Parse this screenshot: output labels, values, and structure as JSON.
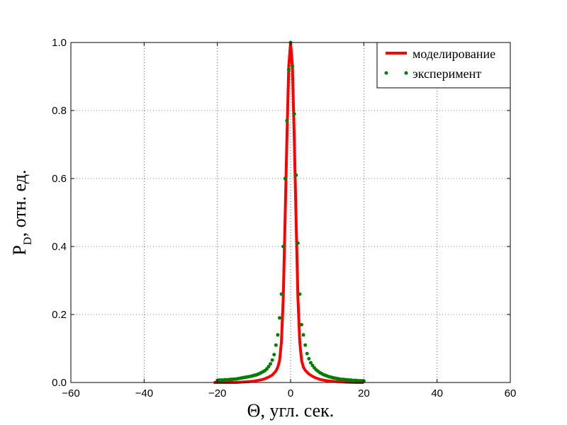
{
  "chart_data": {
    "type": "line",
    "xlabel": {
      "symbol": "Θ",
      "text": ", угл. сек."
    },
    "ylabel": {
      "symbol": "P",
      "subscript": "D",
      "text": ", отн. ед."
    },
    "xlim": [
      -60,
      60
    ],
    "ylim": [
      0,
      1
    ],
    "xticks": [
      -60,
      -40,
      -20,
      0,
      20,
      40,
      60
    ],
    "xtick_labels": [
      "−60",
      "−40",
      "−20",
      "0",
      "20",
      "40",
      "60"
    ],
    "yticks": [
      0,
      0.2,
      0.4,
      0.6,
      0.8,
      1.0
    ],
    "ytick_labels": [
      "0.0",
      "0.2",
      "0.4",
      "0.6",
      "0.8",
      "1.0"
    ],
    "grid": true,
    "legend_position": "top-right",
    "series": [
      {
        "name": "моделирование",
        "style": "line",
        "color": "#ff0000",
        "x": [
          -21,
          -18,
          -15,
          -12,
          -10,
          -8,
          -7,
          -6,
          -5,
          -4,
          -3.5,
          -3,
          -2.5,
          -2,
          -1.5,
          -1,
          -0.5,
          0,
          0.5,
          1,
          1.5,
          2,
          2.5,
          3,
          3.5,
          4,
          5,
          6,
          7,
          8,
          10,
          12,
          15,
          18,
          20
        ],
        "y": [
          0.0,
          0.0,
          0.0,
          0.002,
          0.004,
          0.008,
          0.011,
          0.016,
          0.022,
          0.034,
          0.045,
          0.065,
          0.12,
          0.25,
          0.48,
          0.72,
          0.93,
          1.0,
          0.93,
          0.72,
          0.48,
          0.25,
          0.12,
          0.065,
          0.045,
          0.036,
          0.025,
          0.018,
          0.013,
          0.009,
          0.005,
          0.003,
          0.001,
          0.0,
          0.0
        ]
      },
      {
        "name": "эксперимент",
        "style": "scatter",
        "color": "#007f00",
        "x": [
          -20,
          -19.5,
          -19,
          -18.5,
          -18,
          -17.5,
          -17,
          -16.5,
          -16,
          -15.5,
          -15,
          -14.5,
          -14,
          -13.5,
          -13,
          -12.5,
          -12,
          -11.5,
          -11,
          -10.5,
          -10,
          -9.5,
          -9,
          -8.5,
          -8,
          -7.5,
          -7,
          -6.5,
          -6,
          -5.5,
          -5,
          -4.5,
          -4,
          -3.5,
          -3,
          -2.5,
          -2,
          -1.5,
          -1,
          -0.5,
          0,
          0.5,
          1,
          1.5,
          2,
          2.5,
          3,
          3.5,
          4,
          4.5,
          5,
          5.5,
          6,
          6.5,
          7,
          7.5,
          8,
          8.5,
          9,
          9.5,
          10,
          10.5,
          11,
          11.5,
          12,
          12.5,
          13,
          13.5,
          14,
          14.5,
          15,
          15.5,
          16,
          16.5,
          17,
          17.5,
          18,
          18.5,
          19,
          19.5,
          20
        ],
        "y": [
          0.006,
          0.007,
          0.007,
          0.007,
          0.008,
          0.008,
          0.008,
          0.009,
          0.009,
          0.01,
          0.01,
          0.011,
          0.012,
          0.013,
          0.014,
          0.015,
          0.016,
          0.017,
          0.018,
          0.019,
          0.021,
          0.022,
          0.024,
          0.026,
          0.029,
          0.032,
          0.035,
          0.04,
          0.047,
          0.055,
          0.066,
          0.082,
          0.11,
          0.14,
          0.19,
          0.26,
          0.4,
          0.6,
          0.77,
          0.92,
          1.0,
          0.93,
          0.79,
          0.61,
          0.41,
          0.26,
          0.17,
          0.14,
          0.11,
          0.085,
          0.07,
          0.058,
          0.05,
          0.043,
          0.037,
          0.033,
          0.029,
          0.026,
          0.023,
          0.021,
          0.019,
          0.017,
          0.016,
          0.014,
          0.013,
          0.012,
          0.011,
          0.01,
          0.009,
          0.009,
          0.008,
          0.008,
          0.007,
          0.007,
          0.006,
          0.006,
          0.006,
          0.005,
          0.005,
          0.005,
          0.004
        ]
      }
    ]
  }
}
